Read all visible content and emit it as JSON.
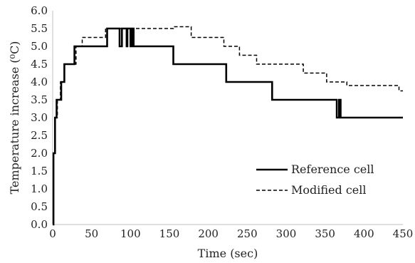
{
  "chart_data": {
    "type": "line",
    "xlabel": "Time (sec)",
    "ylabel": "Temperature  increase (⁰C)",
    "xlim": [
      0,
      450
    ],
    "ylim": [
      0.0,
      6.0
    ],
    "x_ticks": [
      "0",
      "50",
      "100",
      "150",
      "200",
      "250",
      "300",
      "350",
      "400",
      "450"
    ],
    "y_ticks": [
      "0.0",
      "0.5",
      "1.0",
      "1.5",
      "2.0",
      "2.5",
      "3.0",
      "3.5",
      "4.0",
      "4.5",
      "5.0",
      "5.5",
      "6.0"
    ],
    "grid": false,
    "legend_position": "right",
    "series": [
      {
        "name": "Reference cell",
        "style": "solid",
        "color": "#000000",
        "x": [
          0,
          1,
          1,
          3,
          3,
          5,
          5,
          7,
          7,
          11,
          11,
          15,
          15,
          20,
          20,
          28,
          28,
          70,
          70,
          86,
          86,
          89,
          89,
          95,
          95,
          96,
          96,
          100,
          100,
          102,
          102,
          104,
          104,
          106,
          106,
          155,
          155,
          223,
          223,
          228,
          228,
          282,
          282,
          365,
          365,
          368,
          368,
          370,
          370,
          450
        ],
        "y": [
          0,
          0,
          2.0,
          2.0,
          3.0,
          3.0,
          3.5,
          3.5,
          3.5,
          3.5,
          4.0,
          4.0,
          4.5,
          4.5,
          4.5,
          4.5,
          5.0,
          5.0,
          5.5,
          5.5,
          5.0,
          5.0,
          5.5,
          5.5,
          5.0,
          5.0,
          5.5,
          5.5,
          5.0,
          5.0,
          5.5,
          5.5,
          5.0,
          5.0,
          5.0,
          5.0,
          4.5,
          4.5,
          4.0,
          4.0,
          4.0,
          4.0,
          3.5,
          3.5,
          3.0,
          3.0,
          3.5,
          3.5,
          3.0,
          3.0
        ]
      },
      {
        "name": "Modified cell",
        "style": "dashed",
        "color": "#000000",
        "x": [
          0,
          1,
          1,
          3,
          3,
          6,
          6,
          10,
          10,
          15,
          15,
          20,
          20,
          30,
          30,
          38,
          38,
          68,
          68,
          155,
          155,
          178,
          178,
          220,
          220,
          240,
          240,
          262,
          262,
          322,
          322,
          352,
          352,
          378,
          378,
          385,
          385,
          445,
          445,
          450
        ],
        "y": [
          0,
          0,
          2.0,
          2.0,
          3.0,
          3.0,
          3.5,
          3.5,
          4.0,
          4.0,
          4.5,
          4.5,
          4.5,
          4.5,
          5.0,
          5.0,
          5.25,
          5.25,
          5.5,
          5.5,
          5.55,
          5.55,
          5.25,
          5.25,
          5.0,
          5.0,
          4.75,
          4.75,
          4.5,
          4.5,
          4.25,
          4.25,
          4.0,
          4.0,
          3.9,
          3.9,
          3.9,
          3.9,
          3.75,
          3.75
        ]
      }
    ]
  }
}
